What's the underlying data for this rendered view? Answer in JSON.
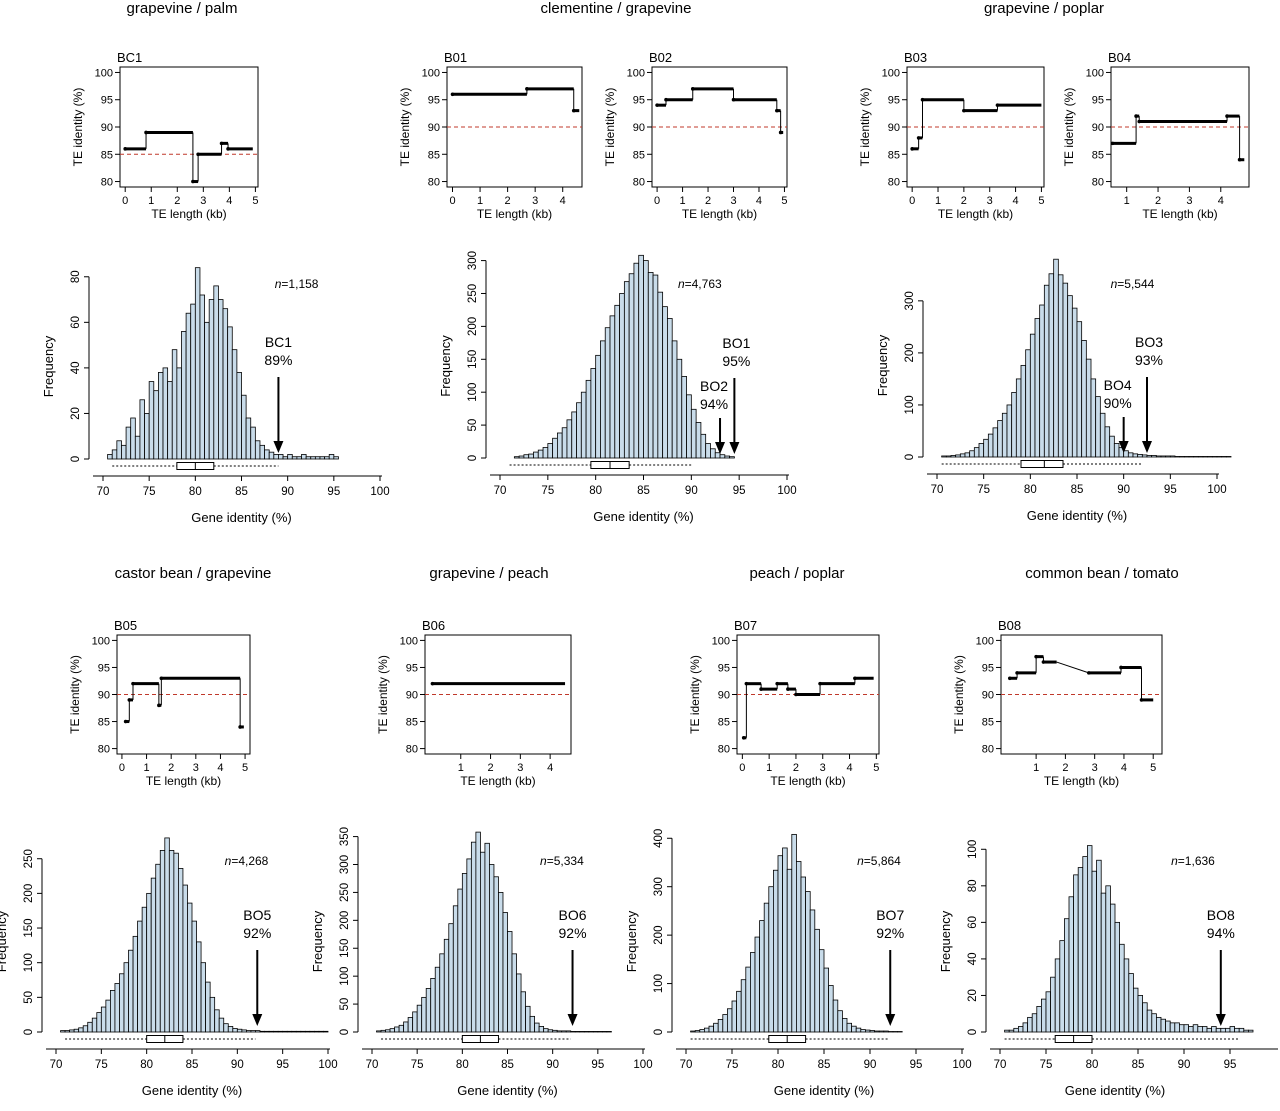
{
  "group_titles": [
    "grapevine / palm",
    "clementine / grapevine",
    "grapevine / poplar",
    "castor bean / grapevine",
    "grapevine / peach",
    "peach / poplar",
    "common bean / tomato"
  ],
  "chart_data": [
    {
      "type": "line",
      "id": "te-bc1",
      "panel_label": "BC1",
      "xlabel": "TE length (kb)",
      "ylabel": "TE identity (%)",
      "xlim": [
        -0.2,
        5.1
      ],
      "ylim": [
        79,
        101
      ],
      "xticks": [
        "0",
        "1",
        "2",
        "3",
        "4",
        "5"
      ],
      "yticks": [
        "80",
        "85",
        "90",
        "95",
        "100"
      ],
      "threshold": 85,
      "segments": [
        [
          0,
          0.8,
          86
        ],
        [
          0.8,
          2.6,
          89
        ],
        [
          2.6,
          2.8,
          80
        ],
        [
          2.8,
          3.7,
          85
        ],
        [
          3.7,
          3.95,
          87
        ],
        [
          3.95,
          4.9,
          86
        ]
      ]
    },
    {
      "type": "line",
      "id": "te-b01",
      "panel_label": "B01",
      "xlabel": "TE length (kb)",
      "ylabel": "TE identity (%)",
      "xlim": [
        -0.2,
        4.7
      ],
      "ylim": [
        79,
        101
      ],
      "xticks": [
        "0",
        "1",
        "2",
        "3",
        "4"
      ],
      "yticks": [
        "80",
        "85",
        "90",
        "95",
        "100"
      ],
      "threshold": 90,
      "segments": [
        [
          0,
          2.7,
          96
        ],
        [
          2.7,
          4.4,
          97
        ],
        [
          4.4,
          4.6,
          93
        ]
      ]
    },
    {
      "type": "line",
      "id": "te-b02",
      "panel_label": "B02",
      "xlabel": "TE length (kb)",
      "ylabel": "TE identity (%)",
      "xlim": [
        -0.2,
        5.1
      ],
      "ylim": [
        79,
        101
      ],
      "xticks": [
        "0",
        "1",
        "2",
        "3",
        "4",
        "5"
      ],
      "yticks": [
        "80",
        "85",
        "90",
        "95",
        "100"
      ],
      "threshold": 90,
      "segments": [
        [
          0,
          0.35,
          94
        ],
        [
          0.35,
          1.4,
          95
        ],
        [
          1.4,
          3.0,
          97
        ],
        [
          3.0,
          4.7,
          95
        ],
        [
          4.7,
          4.85,
          93
        ],
        [
          4.85,
          4.95,
          89
        ]
      ]
    },
    {
      "type": "line",
      "id": "te-b03",
      "panel_label": "B03",
      "xlabel": "TE length (kb)",
      "ylabel": "TE identity (%)",
      "xlim": [
        -0.2,
        5.1
      ],
      "ylim": [
        79,
        101
      ],
      "xticks": [
        "0",
        "1",
        "2",
        "3",
        "4",
        "5"
      ],
      "yticks": [
        "80",
        "85",
        "90",
        "95",
        "100"
      ],
      "threshold": 90,
      "segments": [
        [
          0,
          0.25,
          86
        ],
        [
          0.25,
          0.4,
          88
        ],
        [
          0.4,
          2.0,
          95
        ],
        [
          2.0,
          3.3,
          93
        ],
        [
          3.3,
          5.0,
          94
        ]
      ]
    },
    {
      "type": "line",
      "id": "te-b04",
      "panel_label": "B04",
      "xlabel": "TE length (kb)",
      "ylabel": "TE identity (%)",
      "xlim": [
        0.5,
        4.9
      ],
      "ylim": [
        79,
        101
      ],
      "xticks": [
        "1",
        "2",
        "3",
        "4"
      ],
      "yticks": [
        "80",
        "85",
        "90",
        "95",
        "100"
      ],
      "threshold": 90,
      "segments": [
        [
          0.55,
          1.3,
          87
        ],
        [
          1.3,
          1.4,
          92
        ],
        [
          1.4,
          4.2,
          91
        ],
        [
          4.2,
          4.6,
          92
        ],
        [
          4.6,
          4.75,
          84
        ]
      ]
    },
    {
      "type": "line",
      "id": "te-b05",
      "panel_label": "B05",
      "xlabel": "TE length (kb)",
      "ylabel": "TE identity (%)",
      "xlim": [
        -0.2,
        5.2
      ],
      "ylim": [
        79,
        101
      ],
      "xticks": [
        "0",
        "1",
        "2",
        "3",
        "4",
        "5"
      ],
      "yticks": [
        "80",
        "85",
        "90",
        "95",
        "100"
      ],
      "threshold": 90,
      "segments": [
        [
          0.15,
          0.3,
          85
        ],
        [
          0.3,
          0.45,
          89
        ],
        [
          0.45,
          1.5,
          92
        ],
        [
          1.5,
          1.6,
          88
        ],
        [
          1.6,
          4.8,
          93
        ],
        [
          4.8,
          4.95,
          84
        ]
      ]
    },
    {
      "type": "line",
      "id": "te-b06",
      "panel_label": "B06",
      "xlabel": "TE length (kb)",
      "ylabel": "TE identity (%)",
      "xlim": [
        -0.2,
        4.7
      ],
      "ylim": [
        79,
        101
      ],
      "xticks": [
        "1",
        "2",
        "3",
        "4"
      ],
      "yticks": [
        "80",
        "85",
        "90",
        "95",
        "100"
      ],
      "threshold": 90,
      "segments": [
        [
          0.05,
          4.5,
          92
        ]
      ]
    },
    {
      "type": "line",
      "id": "te-b07",
      "panel_label": "B07",
      "xlabel": "TE length (kb)",
      "ylabel": "TE identity (%)",
      "xlim": [
        -0.2,
        5.1
      ],
      "ylim": [
        79,
        101
      ],
      "xticks": [
        "0",
        "1",
        "2",
        "3",
        "4",
        "5"
      ],
      "yticks": [
        "80",
        "85",
        "90",
        "95",
        "100"
      ],
      "threshold": 90,
      "segments": [
        [
          0.05,
          0.15,
          82
        ],
        [
          0.15,
          0.7,
          92
        ],
        [
          0.7,
          1.3,
          91
        ],
        [
          1.3,
          1.7,
          92
        ],
        [
          1.7,
          2.0,
          91
        ],
        [
          2.0,
          2.9,
          90
        ],
        [
          2.9,
          4.2,
          92
        ],
        [
          4.2,
          4.9,
          93
        ]
      ]
    },
    {
      "type": "line",
      "id": "te-b08",
      "panel_label": "B08",
      "xlabel": "TE length (kb)",
      "ylabel": "TE identity (%)",
      "xlim": [
        -0.2,
        5.3
      ],
      "ylim": [
        79,
        101
      ],
      "xticks": [
        "1",
        "2",
        "3",
        "4",
        "5"
      ],
      "yticks": [
        "80",
        "85",
        "90",
        "95",
        "100"
      ],
      "threshold": 90,
      "segments": [
        [
          0.1,
          0.35,
          93
        ],
        [
          0.35,
          1.0,
          94
        ],
        [
          1.0,
          1.25,
          97
        ],
        [
          1.25,
          1.7,
          96
        ],
        [
          2.8,
          3.9,
          94
        ],
        [
          3.9,
          4.6,
          95
        ],
        [
          4.6,
          5.0,
          89
        ]
      ],
      "connected": true
    },
    {
      "type": "bar",
      "id": "hist-bc1",
      "xlabel": "Gene identity (%)",
      "ylabel": "Frequency",
      "xlim": [
        70,
        100
      ],
      "ylim": [
        0,
        90
      ],
      "xticks": [
        "70",
        "75",
        "80",
        "85",
        "90",
        "95",
        "100"
      ],
      "yticks": [
        "0",
        "20",
        "40",
        "60",
        "80"
      ],
      "n_label": "=1,158",
      "n_prefix": "n",
      "bin_start": 70.5,
      "bin_width": 0.5,
      "values": [
        2,
        4,
        8,
        6,
        14,
        18,
        10,
        26,
        20,
        34,
        30,
        38,
        40,
        34,
        48,
        40,
        56,
        64,
        68,
        84,
        72,
        60,
        70,
        76,
        70,
        66,
        58,
        48,
        38,
        28,
        18,
        14,
        8,
        6,
        4,
        3,
        2,
        2,
        1,
        2,
        1,
        1,
        2,
        1,
        1,
        1,
        1,
        1,
        2,
        1
      ],
      "box": {
        "q1": 78,
        "median": 80,
        "q3": 82,
        "whisker_low": 71,
        "whisker_high": 89
      },
      "arrows": [
        {
          "label": "BC1",
          "pct": "89%",
          "x": 89
        }
      ]
    },
    {
      "type": "bar",
      "id": "hist-b01",
      "xlabel": "Gene identity (%)",
      "ylabel": "Frequency",
      "xlim": [
        70,
        100
      ],
      "ylim": [
        0,
        310
      ],
      "xticks": [
        "70",
        "75",
        "80",
        "85",
        "90",
        "95",
        "100"
      ],
      "yticks": [
        "0",
        "50",
        "100",
        "150",
        "200",
        "250",
        "300"
      ],
      "n_label": "=4,763",
      "n_prefix": "n",
      "bin_start": 71.5,
      "bin_width": 0.5,
      "values": [
        2,
        3,
        5,
        6,
        9,
        12,
        16,
        22,
        30,
        38,
        46,
        58,
        70,
        84,
        100,
        118,
        136,
        156,
        178,
        198,
        216,
        232,
        250,
        268,
        280,
        296,
        308,
        300,
        282,
        278,
        252,
        230,
        212,
        178,
        150,
        124,
        96,
        74,
        54,
        36,
        22,
        14,
        8,
        5,
        3,
        2
      ],
      "box": {
        "q1": 79.5,
        "median": 81.5,
        "q3": 83.5,
        "whisker_low": 71,
        "whisker_high": 90
      },
      "arrows": [
        {
          "label": "BO1",
          "pct": "95%",
          "x": 94.5
        },
        {
          "label": "BO2",
          "pct": "94%",
          "x": 93
        }
      ]
    },
    {
      "type": "bar",
      "id": "hist-b03",
      "xlabel": "Gene identity (%)",
      "ylabel": "Frequency",
      "xlim": [
        70,
        100
      ],
      "ylim": [
        0,
        390
      ],
      "xticks": [
        "70",
        "75",
        "80",
        "85",
        "90",
        "95",
        "100"
      ],
      "yticks": [
        "0",
        "100",
        "200",
        "300"
      ],
      "n_label": "=5,544",
      "n_prefix": "n",
      "bin_start": 70.5,
      "bin_width": 0.5,
      "values": [
        2,
        2,
        3,
        4,
        6,
        8,
        12,
        18,
        26,
        34,
        44,
        56,
        70,
        84,
        100,
        124,
        150,
        176,
        206,
        236,
        266,
        292,
        330,
        352,
        380,
        350,
        334,
        310,
        286,
        260,
        224,
        188,
        150,
        116,
        84,
        58,
        40,
        26,
        18,
        12,
        8,
        6,
        5,
        4,
        3,
        3,
        2,
        2,
        2,
        2,
        1,
        1,
        1,
        1,
        1,
        1,
        1,
        1,
        1,
        1,
        1,
        1
      ],
      "box": {
        "q1": 79,
        "median": 81.5,
        "q3": 83.5,
        "whisker_low": 70.5,
        "whisker_high": 92
      },
      "arrows": [
        {
          "label": "BO3",
          "pct": "93%",
          "x": 92.5
        },
        {
          "label": "BO4",
          "pct": "90%",
          "x": 90
        }
      ]
    },
    {
      "type": "bar",
      "id": "hist-b05",
      "xlabel": "Gene identity (%)",
      "ylabel": "Frequency",
      "xlim": [
        70,
        100
      ],
      "ylim": [
        0,
        290
      ],
      "xticks": [
        "70",
        "75",
        "80",
        "85",
        "90",
        "95",
        "100"
      ],
      "yticks": [
        "0",
        "50",
        "100",
        "150",
        "200",
        "250"
      ],
      "n_label": "=4,268",
      "n_prefix": "n",
      "bin_start": 70.5,
      "bin_width": 0.5,
      "values": [
        2,
        2,
        3,
        4,
        6,
        9,
        14,
        20,
        28,
        36,
        46,
        60,
        70,
        84,
        100,
        118,
        138,
        160,
        180,
        200,
        222,
        242,
        262,
        280,
        262,
        258,
        236,
        212,
        186,
        160,
        130,
        100,
        72,
        50,
        32,
        20,
        12,
        8,
        5,
        4,
        3,
        2,
        2,
        2,
        1,
        1,
        1,
        1,
        1,
        1,
        1,
        1,
        1,
        1,
        1,
        1,
        1,
        1,
        1
      ],
      "box": {
        "q1": 80,
        "median": 82,
        "q3": 84,
        "whisker_low": 71,
        "whisker_high": 92
      },
      "arrows": [
        {
          "label": "BO5",
          "pct": "92%",
          "x": 92.2
        }
      ]
    },
    {
      "type": "bar",
      "id": "hist-b06",
      "xlabel": "Gene identity (%)",
      "ylabel": "Frequency",
      "xlim": [
        70,
        100
      ],
      "ylim": [
        0,
        360
      ],
      "xticks": [
        "70",
        "75",
        "80",
        "85",
        "90",
        "95",
        "100"
      ],
      "yticks": [
        "0",
        "50",
        "100",
        "150",
        "200",
        "250",
        "300",
        "350"
      ],
      "n_label": "=5,334",
      "n_prefix": "n",
      "bin_start": 70.5,
      "bin_width": 0.5,
      "values": [
        2,
        3,
        4,
        6,
        9,
        12,
        18,
        26,
        36,
        48,
        62,
        78,
        96,
        116,
        140,
        166,
        194,
        226,
        256,
        284,
        310,
        340,
        358,
        322,
        338,
        300,
        278,
        250,
        214,
        180,
        140,
        104,
        72,
        46,
        28,
        16,
        10,
        6,
        4,
        3,
        2,
        2,
        2,
        1,
        1,
        1,
        1,
        1,
        1,
        1,
        1,
        1
      ],
      "box": {
        "q1": 80,
        "median": 82,
        "q3": 84,
        "whisker_low": 71,
        "whisker_high": 92
      },
      "arrows": [
        {
          "label": "BO6",
          "pct": "92%",
          "x": 92.2
        }
      ]
    },
    {
      "type": "bar",
      "id": "hist-b07",
      "xlabel": "Gene identity (%)",
      "ylabel": "Frequency",
      "xlim": [
        70,
        100
      ],
      "ylim": [
        0,
        415
      ],
      "xticks": [
        "70",
        "75",
        "80",
        "85",
        "90",
        "95",
        "100"
      ],
      "yticks": [
        "0",
        "100",
        "200",
        "300",
        "400"
      ],
      "n_label": "=5,864",
      "n_prefix": "n",
      "bin_start": 70.5,
      "bin_width": 0.5,
      "values": [
        2,
        3,
        5,
        8,
        12,
        18,
        26,
        36,
        48,
        64,
        84,
        108,
        134,
        164,
        196,
        230,
        266,
        300,
        334,
        364,
        380,
        336,
        408,
        352,
        320,
        290,
        252,
        212,
        170,
        132,
        96,
        66,
        44,
        28,
        18,
        12,
        8,
        5,
        4,
        3,
        2,
        2,
        2,
        1,
        1,
        1
      ],
      "box": {
        "q1": 79,
        "median": 81,
        "q3": 83,
        "whisker_low": 70.5,
        "whisker_high": 92
      },
      "arrows": [
        {
          "label": "BO7",
          "pct": "92%",
          "x": 92.2
        }
      ]
    },
    {
      "type": "bar",
      "id": "hist-b08",
      "xlabel": "Gene identity (%)",
      "ylabel": "Frequency",
      "xlim": [
        70,
        100
      ],
      "ylim": [
        0,
        110
      ],
      "xticks": [
        "70",
        "75",
        "80",
        "85",
        "90",
        "95"
      ],
      "yticks": [
        "0",
        "20",
        "40",
        "60",
        "80",
        "100"
      ],
      "n_label": "=1,636",
      "n_prefix": "n",
      "bin_start": 70.5,
      "bin_width": 0.5,
      "values": [
        1,
        1,
        2,
        3,
        5,
        8,
        10,
        14,
        18,
        22,
        30,
        40,
        50,
        62,
        74,
        86,
        90,
        96,
        102,
        88,
        94,
        76,
        80,
        70,
        60,
        48,
        40,
        32,
        24,
        20,
        16,
        12,
        10,
        8,
        7,
        6,
        5,
        5,
        4,
        4,
        3,
        4,
        3,
        3,
        2,
        3,
        2,
        2,
        2,
        3,
        2,
        2,
        1,
        1
      ],
      "box": {
        "q1": 76,
        "median": 78,
        "q3": 80,
        "whisker_low": 70.5,
        "whisker_high": 96
      },
      "arrows": [
        {
          "label": "BO8",
          "pct": "94%",
          "x": 94
        }
      ]
    }
  ]
}
